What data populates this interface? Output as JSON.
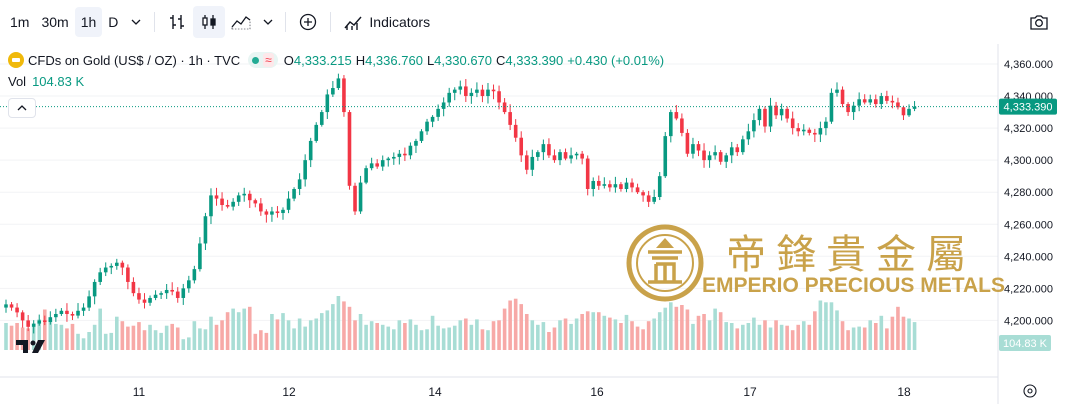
{
  "toolbar": {
    "timeframes": [
      "1m",
      "30m",
      "1h",
      "D"
    ],
    "active_timeframe": "1h",
    "indicators_label": "Indicators"
  },
  "legend": {
    "symbol": "CFDs on Gold (US$ / OZ) · 1h · TVC",
    "open_label": "O",
    "open": "4,333.215",
    "high_label": "H",
    "high": "4,336.760",
    "low_label": "L",
    "low": "4,330.670",
    "close_label": "C",
    "close": "4,333.390",
    "change": "+0.430 (+0.01%)",
    "vol_label": "Vol",
    "vol_value": "104.83 K"
  },
  "colors": {
    "up": "#089981",
    "down": "#f23645",
    "vol_up": "#a8ddd5",
    "vol_down": "#f7a9a7",
    "watermark": "#c9a24a"
  },
  "watermark": {
    "chinese": "帝鋒貴金屬",
    "english": "EMPERIO PRECIOUS METALS"
  },
  "chart_data": {
    "type": "candlestick",
    "price_axis_ticks": [
      "4,360.000",
      "4,340.000",
      "4,320.000",
      "4,300.000",
      "4,280.000",
      "4,260.000",
      "4,240.000",
      "4,220.000",
      "4,200.000"
    ],
    "last_price_label": "4,333.390",
    "last_volume_label": "104.83 K",
    "x_ticks": [
      "11",
      "12",
      "14",
      "16",
      "17",
      "18"
    ],
    "ylim": [
      4196,
      4368
    ],
    "last_price": 4333.39,
    "closes": [
      4210,
      4208,
      4205,
      4200,
      4196,
      4198,
      4200,
      4199,
      4202,
      4204,
      4206,
      4204,
      4203,
      4206,
      4208,
      4215,
      4224,
      4230,
      4233,
      4234,
      4236,
      4233,
      4224,
      4217,
      4213,
      4211,
      4214,
      4216,
      4217,
      4219,
      4218,
      4214,
      4220,
      4225,
      4232,
      4248,
      4265,
      4278,
      4276,
      4272,
      4271,
      4274,
      4278,
      4279,
      4275,
      4273,
      4268,
      4266,
      4268,
      4267,
      4269,
      4276,
      4282,
      4288,
      4300,
      4312,
      4322,
      4330,
      4341,
      4345,
      4351,
      4330,
      4284,
      4268,
      4286,
      4295,
      4298,
      4296,
      4300,
      4301,
      4302,
      4304,
      4303,
      4309,
      4312,
      4318,
      4324,
      4327,
      4332,
      4336,
      4342,
      4344,
      4346,
      4340,
      4342,
      4344,
      4340,
      4344,
      4343,
      4336,
      4330,
      4322,
      4314,
      4303,
      4294,
      4302,
      4305,
      4310,
      4303,
      4300,
      4305,
      4301,
      4303,
      4304,
      4301,
      4282,
      4287,
      4284,
      4285,
      4283,
      4285,
      4282,
      4286,
      4283,
      4280,
      4278,
      4274,
      4277,
      4290,
      4315,
      4330,
      4326,
      4317,
      4304,
      4310,
      4306,
      4300,
      4303,
      4305,
      4299,
      4303,
      4308,
      4305,
      4313,
      4318,
      4325,
      4332,
      4321,
      4334,
      4328,
      4332,
      4326,
      4320,
      4318,
      4319,
      4317,
      4316,
      4320,
      4324,
      4342,
      4344,
      4335,
      4330,
      4334,
      4338,
      4336,
      4338,
      4335,
      4340,
      4337,
      4336,
      4333,
      4328,
      4332,
      4333.39
    ],
    "volumes": [
      30,
      27,
      30,
      25,
      24,
      26,
      34,
      45,
      33,
      29,
      28,
      24,
      29,
      18,
      13,
      20,
      28,
      46,
      18,
      19,
      37,
      32,
      26,
      27,
      31,
      22,
      28,
      22,
      19,
      27,
      29,
      25,
      12,
      14,
      32,
      24,
      23,
      37,
      28,
      33,
      42,
      46,
      42,
      46,
      48,
      18,
      22,
      19,
      40,
      34,
      41,
      33,
      24,
      35,
      26,
      33,
      35,
      41,
      44,
      51,
      60,
      54,
      48,
      33,
      40,
      28,
      32,
      30,
      28,
      26,
      23,
      33,
      30,
      34,
      28,
      22,
      23,
      38,
      27,
      24,
      25,
      27,
      33,
      35,
      28,
      34,
      23,
      22,
      32,
      33,
      46,
      55,
      57,
      51,
      40,
      33,
      28,
      31,
      20,
      25,
      33,
      35,
      29,
      35,
      40,
      43,
      42,
      42,
      38,
      36,
      34,
      30,
      39,
      32,
      26,
      23,
      32,
      35,
      42,
      47,
      53,
      48,
      50,
      45,
      29,
      38,
      40,
      33,
      46,
      42,
      31,
      30,
      24,
      28,
      30,
      36,
      28,
      33,
      25,
      33,
      28,
      27,
      22,
      28,
      32,
      28,
      43,
      55,
      53,
      53,
      44,
      32,
      22,
      25,
      26,
      25,
      33,
      30,
      38,
      24,
      37,
      48,
      37,
      35,
      31
    ]
  }
}
